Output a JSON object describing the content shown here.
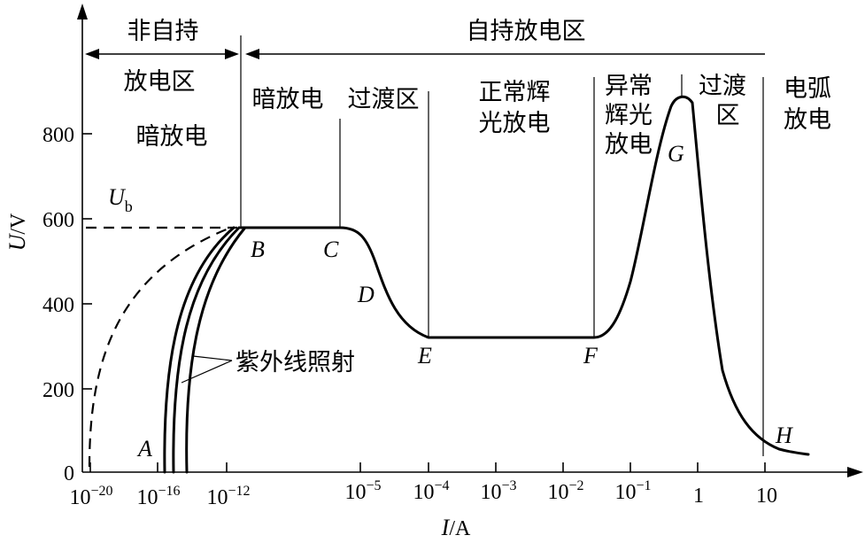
{
  "y_axis": {
    "label_italic": "U",
    "label_unit": "/V",
    "ticks": [
      "800",
      "600",
      "400",
      "200",
      "0"
    ]
  },
  "x_axis": {
    "label_italic": "I",
    "label_unit": "/A",
    "ticks": [
      {
        "base": "10",
        "exp": "−20"
      },
      {
        "base": "10",
        "exp": "−16"
      },
      {
        "base": "10",
        "exp": "−12"
      },
      {
        "base": "10",
        "exp": "−5"
      },
      {
        "base": "10",
        "exp": "−4"
      },
      {
        "base": "10",
        "exp": "−3"
      },
      {
        "base": "10",
        "exp": "−2"
      },
      {
        "base": "10",
        "exp": "−1"
      },
      {
        "base": "1",
        "exp": ""
      },
      {
        "base": "10",
        "exp": ""
      }
    ]
  },
  "header": {
    "non_self_line1": "非自持",
    "non_self_line2": "放电区",
    "self_sustained": "自持放电区"
  },
  "regions": {
    "dark_discharge_left": "暗放电",
    "dark_discharge": "暗放电",
    "transition_1": "过渡区",
    "normal_glow_line1": "正常辉",
    "normal_glow_line2": "光放电",
    "abnormal_glow_line1": "异常",
    "abnormal_glow_line2": "辉光",
    "abnormal_glow_line3": "放电",
    "transition_2_line1": "过渡",
    "transition_2_line2": "区",
    "arc_line1": "电弧",
    "arc_line2": "放电"
  },
  "voltage_label": {
    "base": "U",
    "sub": "b"
  },
  "points": {
    "A": "A",
    "B": "B",
    "C": "C",
    "D": "D",
    "E": "E",
    "F": "F",
    "G": "G",
    "H": "H"
  },
  "uv_label": "紫外线照射"
}
